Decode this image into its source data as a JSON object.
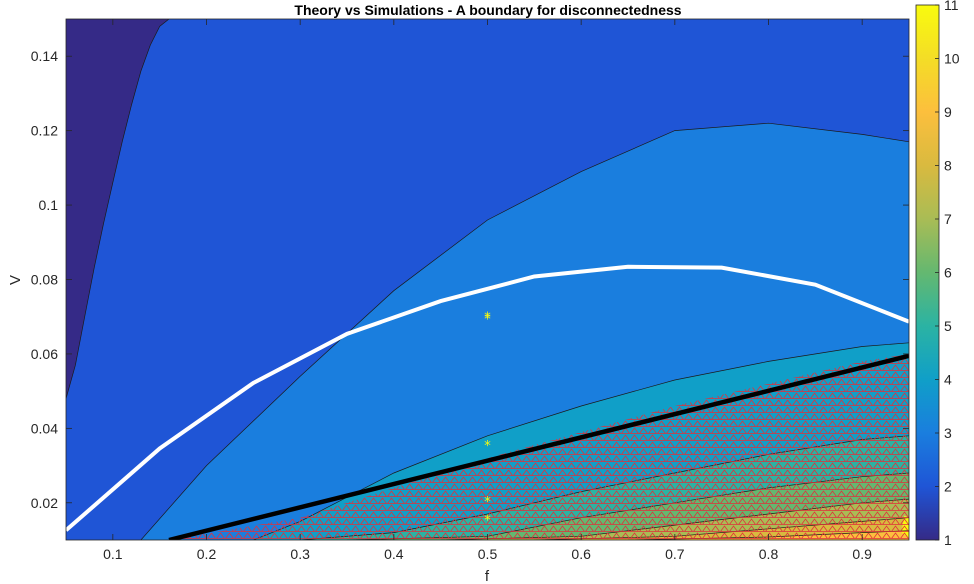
{
  "chart_data": {
    "type": "contour",
    "title": "Theory vs Simulations - A boundary for disconnectedness",
    "xlabel": "f",
    "ylabel": "V",
    "xlim": [
      0.05,
      0.95
    ],
    "ylim": [
      0.01,
      0.15
    ],
    "xticks": [
      "0.1",
      "0.2",
      "0.3",
      "0.4",
      "0.5",
      "0.6",
      "0.7",
      "0.8",
      "0.9"
    ],
    "yticks": [
      "0.02",
      "0.04",
      "0.06",
      "0.08",
      "0.1",
      "0.12",
      "0.14"
    ],
    "colorbar": {
      "range": [
        1,
        11
      ],
      "ticks": [
        "1",
        "2",
        "3",
        "4",
        "5",
        "6",
        "7",
        "8",
        "9",
        "10",
        "11"
      ],
      "colormap": "parula"
    },
    "filled_levels": [
      {
        "level": 1,
        "color": "#352a87"
      },
      {
        "level": 2,
        "color": "#1f55d6"
      },
      {
        "level": 3,
        "color": "#1a7ede"
      },
      {
        "level": 4,
        "color": "#109fc8"
      },
      {
        "level": 5,
        "color": "#2bb3a3"
      },
      {
        "level": 6,
        "color": "#64b870"
      },
      {
        "level": 7,
        "color": "#a9bc55"
      },
      {
        "level": 8,
        "color": "#d9ba3f"
      },
      {
        "level": 9,
        "color": "#fcbf3d"
      },
      {
        "level": 10,
        "color": "#f4dd26"
      },
      {
        "level": 11,
        "color": "#f9fb0e"
      }
    ],
    "contour_boundaries": [
      {
        "name": "1-2",
        "x": [
          0.05,
          0.06,
          0.07,
          0.08,
          0.09,
          0.1,
          0.11,
          0.12,
          0.13,
          0.14,
          0.15,
          0.16
        ],
        "y": [
          0.048,
          0.057,
          0.07,
          0.083,
          0.095,
          0.106,
          0.117,
          0.127,
          0.136,
          0.143,
          0.148,
          0.15
        ]
      },
      {
        "name": "2-3",
        "x": [
          0.13,
          0.2,
          0.3,
          0.4,
          0.5,
          0.6,
          0.7,
          0.8,
          0.9,
          0.95
        ],
        "y": [
          0.01,
          0.03,
          0.054,
          0.077,
          0.096,
          0.109,
          0.12,
          0.122,
          0.119,
          0.117
        ]
      },
      {
        "name": "3-4",
        "x": [
          0.25,
          0.3,
          0.4,
          0.5,
          0.6,
          0.7,
          0.8,
          0.9,
          0.95
        ],
        "y": [
          0.01,
          0.015,
          0.028,
          0.038,
          0.046,
          0.053,
          0.058,
          0.062,
          0.063
        ]
      },
      {
        "name": "4-5",
        "x": [
          0.3,
          0.4,
          0.5,
          0.6,
          0.7,
          0.8,
          0.9,
          0.95
        ],
        "y": [
          0.01,
          0.012,
          0.017,
          0.023,
          0.028,
          0.033,
          0.037,
          0.038
        ]
      },
      {
        "name": "5-6",
        "x": [
          0.35,
          0.5,
          0.6,
          0.7,
          0.8,
          0.9,
          0.95
        ],
        "y": [
          0.01,
          0.011,
          0.016,
          0.02,
          0.024,
          0.027,
          0.028
        ]
      },
      {
        "name": "6-7",
        "x": [
          0.45,
          0.6,
          0.7,
          0.8,
          0.9,
          0.95
        ],
        "y": [
          0.01,
          0.011,
          0.014,
          0.017,
          0.02,
          0.021
        ]
      },
      {
        "name": "7-8",
        "x": [
          0.55,
          0.7,
          0.8,
          0.9,
          0.95
        ],
        "y": [
          0.01,
          0.011,
          0.013,
          0.015,
          0.016
        ]
      },
      {
        "name": "8-9",
        "x": [
          0.65,
          0.8,
          0.9,
          0.95
        ],
        "y": [
          0.01,
          0.0108,
          0.012,
          0.0125
        ]
      }
    ],
    "theory_curve_white": {
      "x": [
        0.05,
        0.15,
        0.25,
        0.35,
        0.45,
        0.55,
        0.65,
        0.75,
        0.85,
        0.95
      ],
      "y": [
        0.0126,
        0.0346,
        0.0522,
        0.0654,
        0.0742,
        0.0808,
        0.0834,
        0.0832,
        0.0786,
        0.0687
      ]
    },
    "theory_line_black": {
      "x": [
        0.16,
        0.95
      ],
      "y": [
        0.01,
        0.0595
      ]
    },
    "hatched_region": {
      "note": "red triangle markers",
      "upper_x": [
        0.16,
        0.3,
        0.4,
        0.5,
        0.6,
        0.7,
        0.8,
        0.9,
        0.95
      ],
      "upper_y": [
        0.01,
        0.016,
        0.024,
        0.032,
        0.039,
        0.046,
        0.052,
        0.058,
        0.06
      ]
    },
    "simulation_points": {
      "x": [
        0.5,
        0.5,
        0.5,
        0.5,
        0.5
      ],
      "y": [
        0.07,
        0.0695,
        0.0355,
        0.0205,
        0.0155
      ]
    }
  }
}
